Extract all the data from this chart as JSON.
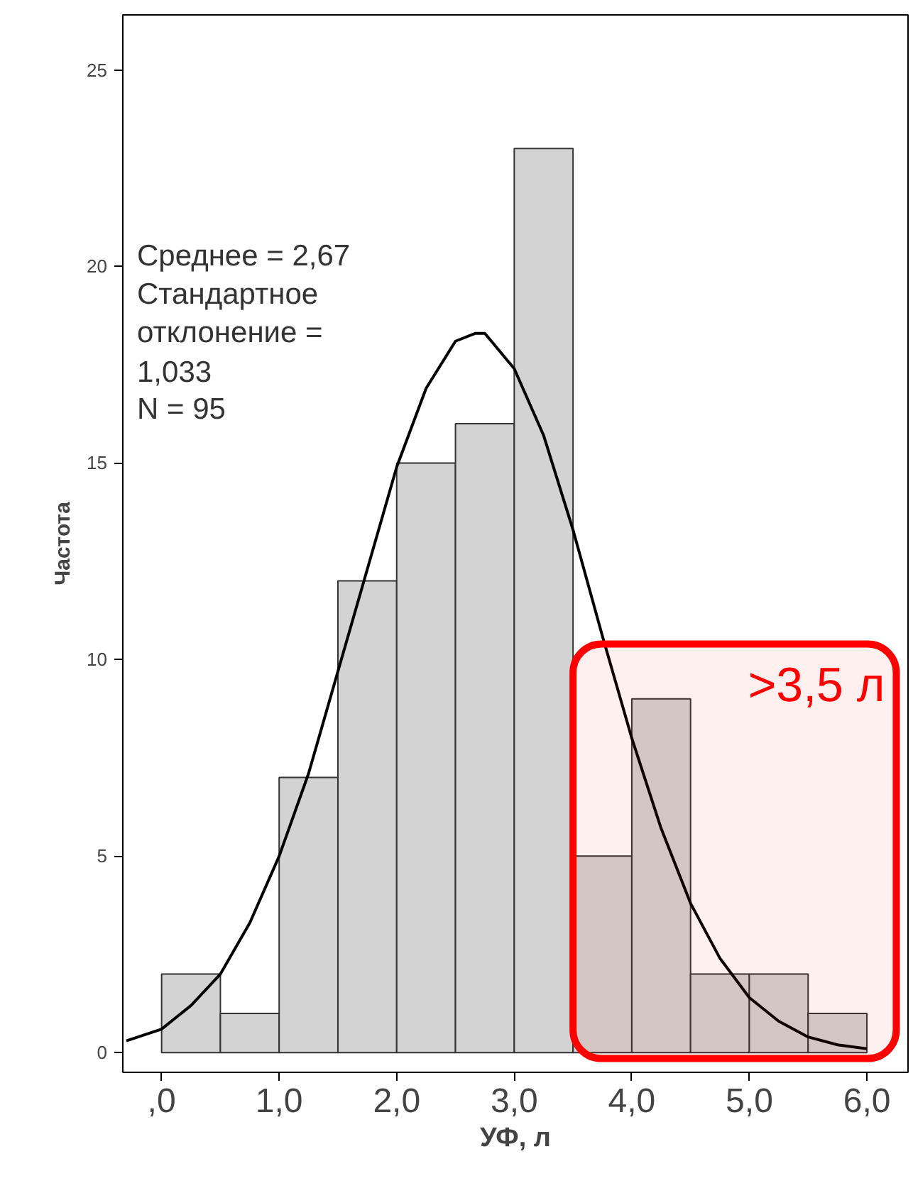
{
  "chart_data": {
    "type": "histogram",
    "xlabel": "УФ, л",
    "ylabel": "Частота",
    "bins": [
      0,
      0.5,
      1,
      1.5,
      2,
      2.5,
      3,
      3.5,
      4,
      4.5,
      5,
      5.5,
      6
    ],
    "values": [
      2,
      1,
      7,
      12,
      15,
      16,
      23,
      5,
      9,
      2,
      2,
      1
    ],
    "color": "#d3d3d3",
    "series": [
      {
        "type": "line",
        "color": "#000000",
        "x": [
          -0.3,
          0,
          0.25,
          0.5,
          0.75,
          1,
          1.25,
          1.5,
          1.75,
          2,
          2.25,
          2.5,
          2.67,
          2.75,
          3,
          3.25,
          3.5,
          3.75,
          4,
          4.25,
          4.5,
          4.75,
          5,
          5.25,
          5.5,
          5.75,
          6
        ],
        "values": [
          0.3,
          0.6,
          1.2,
          2.0,
          3.3,
          5.0,
          7.1,
          9.7,
          12.3,
          14.9,
          16.9,
          18.1,
          18.3,
          18.3,
          17.4,
          15.7,
          13.3,
          10.6,
          8.0,
          5.7,
          3.8,
          2.4,
          1.4,
          0.8,
          0.4,
          0.2,
          0.1
        ]
      }
    ],
    "xlim": [
      -0.33,
      6.35
    ],
    "ylim": [
      -0.5,
      26.4
    ],
    "xticks": [
      {
        "value": 0,
        "label": ",0"
      },
      {
        "value": 1,
        "label": "1,0"
      },
      {
        "value": 2,
        "label": "2,0"
      },
      {
        "value": 3,
        "label": "3,0"
      },
      {
        "value": 4,
        "label": "4,0"
      },
      {
        "value": 5,
        "label": "5,0"
      },
      {
        "value": 6,
        "label": "6,0"
      }
    ],
    "yticks": [
      0,
      5,
      10,
      15,
      20,
      25
    ],
    "grid": false,
    "annotations": [
      "Среднее = 2,67",
      "Стандартное",
      "отклонение =",
      "1,033",
      "N = 95"
    ],
    "bands": [
      {
        "axis": "x",
        "from": 3.5,
        "to": 6.25,
        "label": ">3,5 л",
        "color": "#ff0000"
      }
    ]
  }
}
